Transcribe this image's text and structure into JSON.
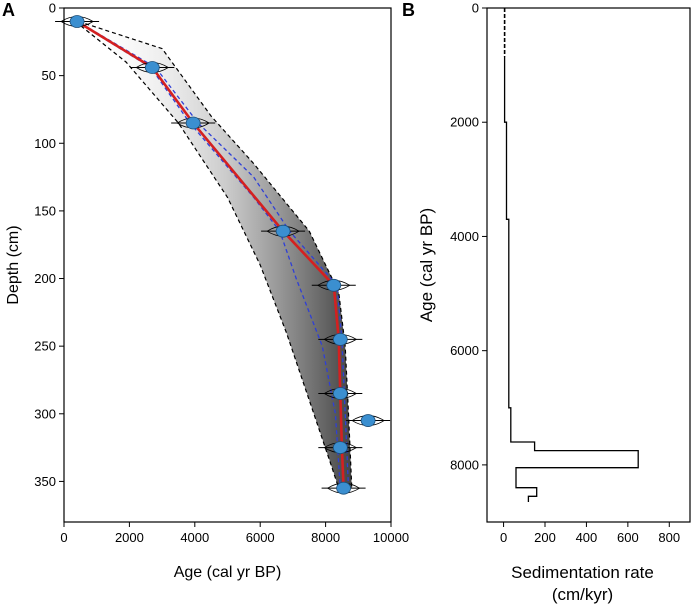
{
  "panels": {
    "a": "A",
    "b": "B"
  },
  "chart_data": [
    {
      "type": "line",
      "panel": "A",
      "title": "",
      "xlabel": "Age (cal yr BP)",
      "ylabel": "Depth (cm)",
      "xlim": [
        0,
        10000
      ],
      "ylim": [
        0,
        380
      ],
      "y_inverted": true,
      "xticks": [
        0,
        2000,
        4000,
        6000,
        8000,
        10000
      ],
      "yticks": [
        0,
        50,
        100,
        150,
        200,
        250,
        300,
        350
      ],
      "xtick_labels": [
        "0",
        "2000",
        "4000",
        "6000",
        "8000",
        "10000"
      ],
      "ytick_labels": [
        "0",
        "50",
        "100",
        "150",
        "200",
        "250",
        "300",
        "350"
      ],
      "series": [
        {
          "name": "median age-depth model",
          "color": "#d42020",
          "points": [
            [
              400,
              10
            ],
            [
              2700,
              44
            ],
            [
              3950,
              85
            ],
            [
              6700,
              165
            ],
            [
              8250,
              205
            ],
            [
              8400,
              245
            ],
            [
              8450,
              285
            ],
            [
              8500,
              325
            ],
            [
              8550,
              355
            ]
          ]
        },
        {
          "name": "inner 95% range (blue dashed)",
          "color": "#2f3fd6",
          "min_points": [
            [
              380,
              10
            ],
            [
              2650,
              44
            ],
            [
              3850,
              85
            ],
            [
              5800,
              140
            ],
            [
              6600,
              165
            ],
            [
              7100,
              200
            ],
            [
              7900,
              250
            ],
            [
              8300,
              300
            ],
            [
              8450,
              355
            ]
          ],
          "max_points": [
            [
              420,
              10
            ],
            [
              2800,
              44
            ],
            [
              4100,
              85
            ],
            [
              5800,
              125
            ],
            [
              6900,
              165
            ],
            [
              8350,
              205
            ],
            [
              8500,
              245
            ],
            [
              8600,
              300
            ],
            [
              8700,
              355
            ]
          ]
        },
        {
          "name": "outer envelope (black dashed)",
          "color": "#000000",
          "min_points": [
            [
              350,
              10
            ],
            [
              1900,
              40
            ],
            [
              3500,
              85
            ],
            [
              5000,
              140
            ],
            [
              6000,
              190
            ],
            [
              6800,
              240
            ],
            [
              7500,
              290
            ],
            [
              8200,
              340
            ],
            [
              8400,
              355
            ]
          ],
          "max_points": [
            [
              450,
              10
            ],
            [
              3000,
              30
            ],
            [
              4500,
              80
            ],
            [
              5800,
              115
            ],
            [
              7500,
              165
            ],
            [
              8400,
              210
            ],
            [
              8600,
              250
            ],
            [
              8700,
              300
            ],
            [
              8800,
              355
            ]
          ]
        }
      ],
      "dated_samples": [
        {
          "age": 400,
          "depth": 10
        },
        {
          "age": 2700,
          "depth": 44
        },
        {
          "age": 3950,
          "depth": 85
        },
        {
          "age": 6700,
          "depth": 165
        },
        {
          "age": 8250,
          "depth": 205
        },
        {
          "age": 8450,
          "depth": 245
        },
        {
          "age": 8450,
          "depth": 285
        },
        {
          "age": 9300,
          "depth": 305
        },
        {
          "age": 8450,
          "depth": 325
        },
        {
          "age": 8550,
          "depth": 355
        }
      ]
    },
    {
      "type": "line",
      "panel": "B",
      "title": "",
      "xlabel": "Sedimentation rate\n(cm/kyr)",
      "ylabel": "Age (cal yr BP)",
      "xlim": [
        -80,
        900
      ],
      "ylim": [
        0,
        9000
      ],
      "y_inverted": true,
      "xticks": [
        0,
        200,
        400,
        600,
        800
      ],
      "yticks": [
        0,
        2000,
        4000,
        6000,
        8000
      ],
      "xtick_labels": [
        "0",
        "200",
        "400",
        "600",
        "800"
      ],
      "ytick_labels": [
        "0",
        "2000",
        "4000",
        "6000",
        "8000"
      ],
      "xlabel_lines": [
        "Sedimentation rate",
        "(cm/kyr)"
      ],
      "dashed_segment": [
        [
          5,
          0
        ],
        [
          5,
          850
        ]
      ],
      "step_series": {
        "name": "sedimentation rate",
        "points": [
          [
            5,
            850
          ],
          [
            5,
            2000
          ],
          [
            14,
            2000
          ],
          [
            14,
            3700
          ],
          [
            25,
            3700
          ],
          [
            25,
            7000
          ],
          [
            35,
            7000
          ],
          [
            35,
            7600
          ],
          [
            150,
            7600
          ],
          [
            150,
            7750
          ],
          [
            650,
            7750
          ],
          [
            650,
            8050
          ],
          [
            60,
            8050
          ],
          [
            60,
            8400
          ],
          [
            160,
            8400
          ],
          [
            160,
            8550
          ],
          [
            120,
            8550
          ],
          [
            120,
            8650
          ]
        ]
      }
    }
  ]
}
